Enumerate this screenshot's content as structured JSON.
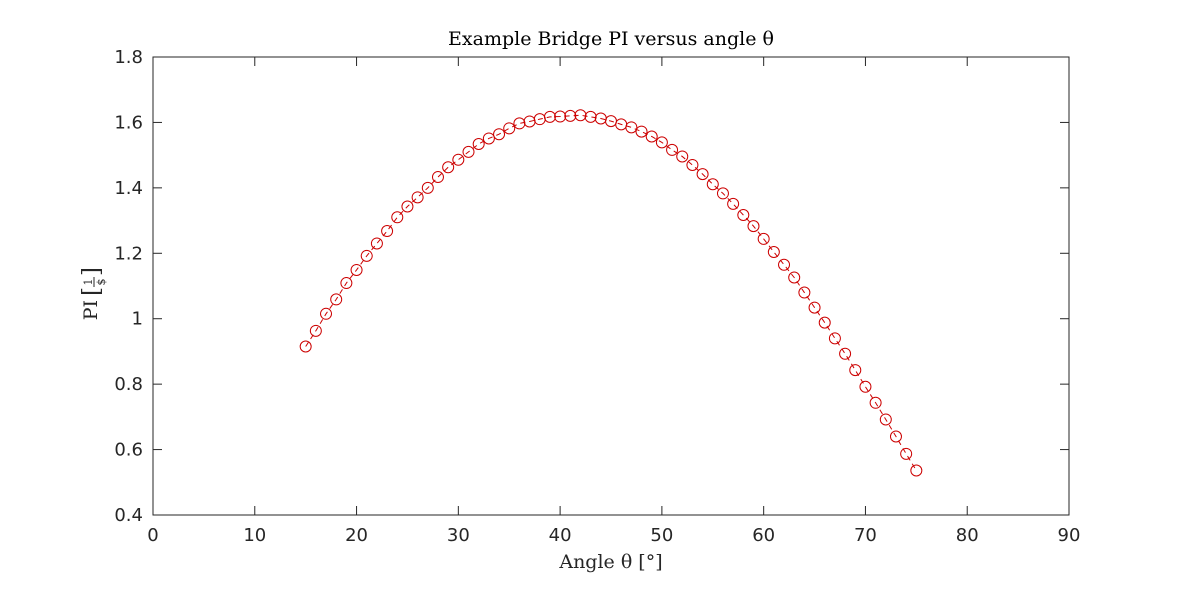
{
  "chart_data": {
    "type": "line",
    "title": "Example Bridge PI versus angle θ",
    "xlabel": "Angle θ [°]",
    "ylabel": {
      "prefix": "PI",
      "fraction_numerator": "1",
      "fraction_denominator": "$"
    },
    "xlim": [
      0,
      90
    ],
    "ylim": [
      0.4,
      1.8
    ],
    "xticks": [
      0,
      10,
      20,
      30,
      40,
      50,
      60,
      70,
      80,
      90
    ],
    "xtick_labels": [
      "0",
      "10",
      "20",
      "30",
      "40",
      "50",
      "60",
      "70",
      "80",
      "90"
    ],
    "yticks": [
      0.4,
      0.6,
      0.8,
      1.0,
      1.2,
      1.4,
      1.6,
      1.8
    ],
    "ytick_labels": [
      "0.4",
      "0.6",
      "0.8",
      "1",
      "1.2",
      "1.4",
      "1.6",
      "1.8"
    ],
    "grid": false,
    "series": [
      {
        "color": "#cc0000",
        "marker": "circle",
        "line_style": "dashed",
        "x": [
          15,
          16,
          17,
          18,
          19,
          20,
          21,
          22,
          23,
          24,
          25,
          26,
          27,
          28,
          29,
          30,
          31,
          32,
          33,
          34,
          35,
          36,
          37,
          38,
          39,
          40,
          41,
          42,
          43,
          44,
          45,
          46,
          47,
          48,
          49,
          50,
          51,
          52,
          53,
          54,
          55,
          56,
          57,
          58,
          59,
          60,
          61,
          62,
          63,
          64,
          65,
          66,
          67,
          68,
          69,
          70,
          71,
          72,
          73,
          74,
          75
        ],
        "y": [
          0.915,
          0.963,
          1.015,
          1.059,
          1.109,
          1.149,
          1.192,
          1.23,
          1.268,
          1.31,
          1.343,
          1.371,
          1.4,
          1.433,
          1.463,
          1.486,
          1.51,
          1.534,
          1.551,
          1.564,
          1.582,
          1.597,
          1.603,
          1.61,
          1.617,
          1.618,
          1.62,
          1.622,
          1.617,
          1.612,
          1.604,
          1.594,
          1.585,
          1.572,
          1.557,
          1.539,
          1.516,
          1.496,
          1.47,
          1.442,
          1.411,
          1.383,
          1.351,
          1.317,
          1.283,
          1.244,
          1.204,
          1.165,
          1.126,
          1.08,
          1.034,
          0.988,
          0.94,
          0.893,
          0.843,
          0.792,
          0.743,
          0.692,
          0.64,
          0.587,
          0.536
        ]
      }
    ]
  }
}
